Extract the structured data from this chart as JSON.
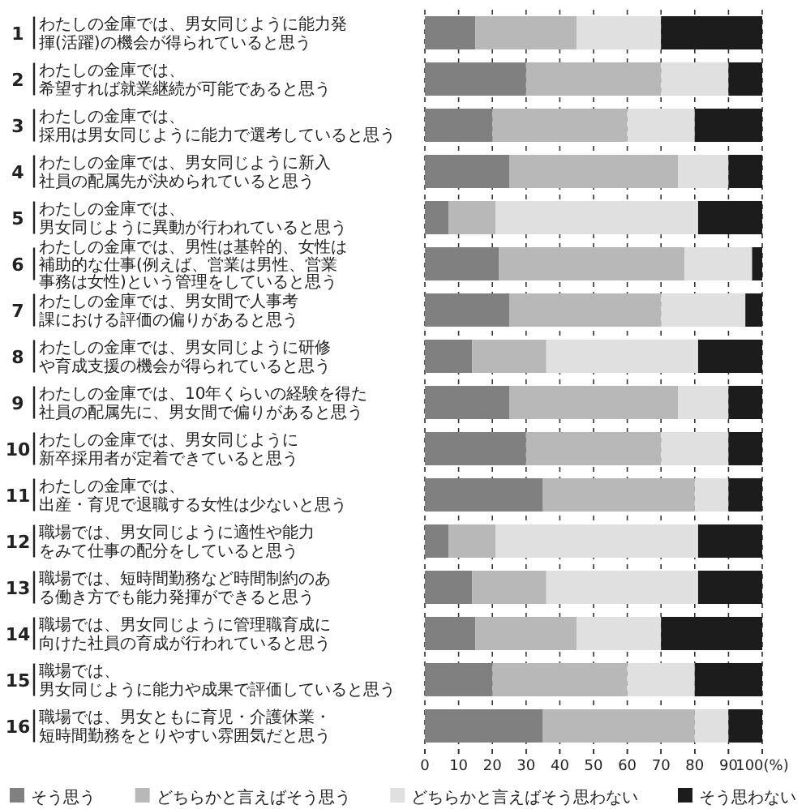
{
  "chart_data": {
    "type": "bar",
    "orientation": "horizontal",
    "stacked": true,
    "categories": [
      "わたしの金庫では、男女同じように能力発揮(活躍)の機会が得られていると思う",
      "わたしの金庫では、希望すれば就業継続が可能であると思う",
      "わたしの金庫では、採用は男女同じように能力で選考していると思う",
      "わたしの金庫では、男女同じように新入社員の配属先が決められていると思う",
      "わたしの金庫では、男女同じように異動が行われていると思う",
      "わたしの金庫では、男性は基幹的、女性は補助的な仕事(例えば、営業は男性、営業事務は女性)という管理をしていると思う",
      "わたしの金庫では、男女間で人事考課における評価の偏りがあると思う",
      "わたしの金庫では、男女同じように研修や育成支援の機会が得られていると思う",
      "わたしの金庫では、10年くらいの経験を得た社員の配属先に、男女間で偏りがあると思う",
      "わたしの金庫では、男女同じように新卒採用者が定着できていると思う",
      "わたしの金庫では、出産・育児で退職する女性は少ないと思う",
      "職場では、男女同じように適性や能力をみて仕事の配分をしていると思う",
      "職場では、短時間勤務など時間制約のある働き方でも能力発揮ができると思う",
      "職場では、男女同じように管理職育成に向けた社員の育成が行われていると思う",
      "職場では、男女同じように能力や成果で評価していると思う",
      "職場では、男女ともに育児・介護休業・短時間勤務をとりやすい雰囲気だと思う"
    ],
    "annotations": [
      "1",
      "2",
      "3",
      "4",
      "5",
      "6",
      "7",
      "8",
      "9",
      "10",
      "11",
      "12",
      "13",
      "14",
      "15",
      "16"
    ],
    "series": [
      {
        "name": "そう思う",
        "color": "#808080",
        "values": [
          15,
          30,
          20,
          25,
          7,
          22,
          25,
          14,
          25,
          30,
          35,
          7,
          14,
          15,
          20,
          35
        ]
      },
      {
        "name": "どちらかと言えばそう思う",
        "color": "#b8b8b8",
        "values": [
          30,
          40,
          40,
          50,
          14,
          55,
          45,
          22,
          50,
          40,
          45,
          14,
          22,
          30,
          40,
          45
        ]
      },
      {
        "name": "どちらかと言えばそう思わない",
        "color": "#e0e0e0",
        "values": [
          25,
          20,
          20,
          15,
          60,
          20,
          25,
          45,
          15,
          20,
          10,
          60,
          45,
          25,
          20,
          10
        ]
      },
      {
        "name": "そう思わない",
        "color": "#1c1c1c",
        "values": [
          30,
          10,
          20,
          10,
          19,
          3,
          5,
          19,
          10,
          10,
          10,
          19,
          19,
          30,
          20,
          10
        ]
      }
    ],
    "xlim": [
      0,
      100
    ],
    "xticks": [
      0,
      10,
      20,
      30,
      40,
      50,
      60,
      70,
      80,
      90,
      {
        "value": 100,
        "label": "100(%)"
      }
    ],
    "grid": "x",
    "legend": "bottom"
  }
}
